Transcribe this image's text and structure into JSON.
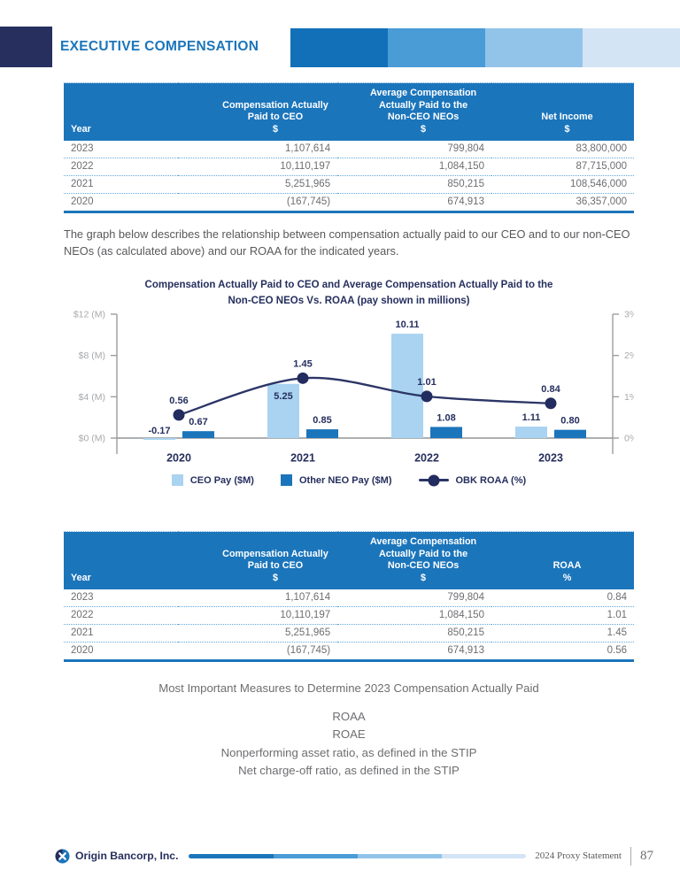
{
  "header": {
    "title": "EXECUTIVE COMPENSATION"
  },
  "intro_paragraph": "The graph below describes the relationship between compensation actually paid to our CEO and to our non-CEO NEOs (as calculated above) and our ROAA for the indicated years.",
  "table_net_income": {
    "header": {
      "year": "Year",
      "ceo": [
        "Compensation Actually",
        "Paid to CEO",
        "$"
      ],
      "neo": [
        "Average Compensation",
        "Actually Paid to the",
        "Non-CEO NEOs",
        "$"
      ],
      "last": [
        "Net Income",
        "$"
      ]
    },
    "rows": [
      [
        "2023",
        "1,107,614",
        "799,804",
        "83,800,000"
      ],
      [
        "2022",
        "10,110,197",
        "1,084,150",
        "87,715,000"
      ],
      [
        "2021",
        "5,251,965",
        "850,215",
        "108,546,000"
      ],
      [
        "2020",
        "(167,745)",
        "674,913",
        "36,357,000"
      ]
    ]
  },
  "table_roaa": {
    "header": {
      "year": "Year",
      "ceo": [
        "Compensation Actually",
        "Paid to CEO",
        "$"
      ],
      "neo": [
        "Average Compensation",
        "Actually Paid to the",
        "Non-CEO NEOs",
        "$"
      ],
      "last": [
        "ROAA",
        "%"
      ]
    },
    "rows": [
      [
        "2023",
        "1,107,614",
        "799,804",
        "0.84"
      ],
      [
        "2022",
        "10,110,197",
        "1,084,150",
        "1.01"
      ],
      [
        "2021",
        "5,251,965",
        "850,215",
        "1.45"
      ],
      [
        "2020",
        "(167,745)",
        "674,913",
        "0.56"
      ]
    ]
  },
  "chart_data": {
    "type": "bar",
    "title_line1": "Compensation Actually Paid to CEO and Average Compensation Actually Paid to the",
    "title_line2": "Non-CEO NEOs Vs. ROAA (pay shown in millions)",
    "categories": [
      "2020",
      "2021",
      "2022",
      "2023"
    ],
    "series": [
      {
        "name": "CEO Pay ($M)",
        "kind": "bar",
        "color": "#a9d3f0",
        "values": [
          -0.17,
          5.25,
          10.11,
          1.11
        ]
      },
      {
        "name": "Other NEO Pay ($M)",
        "kind": "bar",
        "color": "#1b75bb",
        "values": [
          0.67,
          0.85,
          1.08,
          0.8
        ]
      },
      {
        "name": "OBK ROAA (%)",
        "kind": "line",
        "color": "#2b3566",
        "axis": "right",
        "values": [
          0.56,
          1.45,
          1.01,
          0.84
        ]
      }
    ],
    "left_axis": {
      "ticks": [
        "$12 (M)",
        "$8 (M)",
        "$4 (M)",
        "$0 (M)"
      ],
      "min": 0,
      "max": 12
    },
    "right_axis": {
      "ticks": [
        "3%",
        "2%",
        "1%",
        "0%"
      ],
      "min": 0,
      "max": 3
    },
    "legend_position": "bottom",
    "grid": false
  },
  "measures": {
    "title": "Most Important Measures to Determine 2023 Compensation Actually Paid",
    "items": [
      "ROAA",
      "ROAE",
      "Nonperforming asset ratio, as defined in the STIP",
      "Net charge-off ratio, as defined in the STIP"
    ]
  },
  "footer": {
    "brand": "Origin Bancorp, Inc.",
    "doc": "2024 Proxy Statement",
    "page": "87"
  },
  "colors": {
    "accent_blue": "#1b75bb",
    "navy": "#262f5e",
    "light_blue_bar": "#a9d3f0",
    "dark_blue_bar": "#1b75bb",
    "roaa_line": "#2b3566",
    "header_band": [
      "#1170b8",
      "#4a9cd6",
      "#92c4e9",
      "#d3e4f5"
    ],
    "axis_gray": "#a7a9ac",
    "body_gray": "#58595b"
  }
}
